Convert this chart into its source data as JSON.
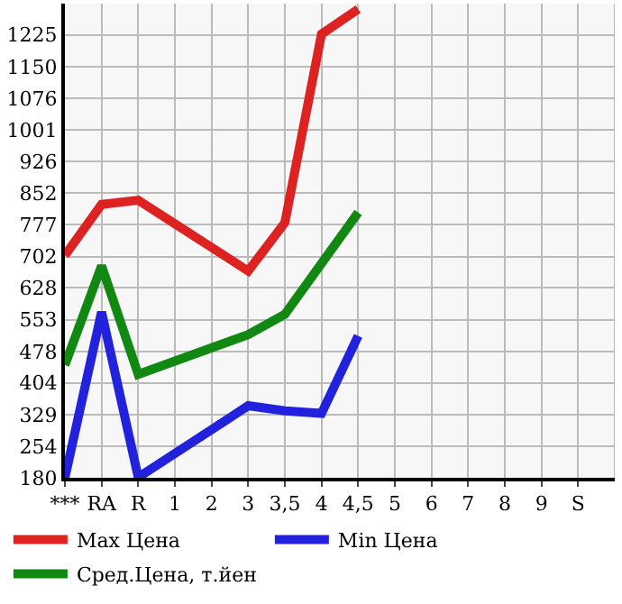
{
  "chart_data": {
    "type": "line",
    "categories": [
      "***",
      "RA",
      "R",
      "1",
      "2",
      "3",
      "3,5",
      "4",
      "4,5",
      "5",
      "6",
      "7",
      "8",
      "9",
      "S"
    ],
    "series": [
      {
        "name": "Max Цена",
        "color": "#dd2222",
        "values": [
          705,
          825,
          835,
          null,
          null,
          668,
          782,
          1227,
          1286,
          null,
          null,
          null,
          null,
          null,
          null
        ]
      },
      {
        "name": "Min Цена",
        "color": "#2222dd",
        "values": [
          180,
          571,
          181,
          null,
          null,
          350,
          338,
          332,
          515,
          null,
          null,
          null,
          null,
          null,
          null
        ]
      },
      {
        "name": "Сред.Цена, т.йен",
        "color": "#118811",
        "values": [
          446,
          680,
          424,
          null,
          null,
          518,
          566,
          null,
          806,
          null,
          null,
          null,
          null,
          null,
          null
        ]
      }
    ],
    "ylim": [
      180,
      1299
    ],
    "yticks": [
      180,
      254,
      329,
      404,
      478,
      553,
      628,
      702,
      777,
      852,
      926,
      1001,
      1076,
      1150,
      1225,
      {
        "value": 1299,
        "label": null
      }
    ],
    "grid": true,
    "legend": "bottom",
    "marker": "none",
    "line_style": "solid"
  }
}
